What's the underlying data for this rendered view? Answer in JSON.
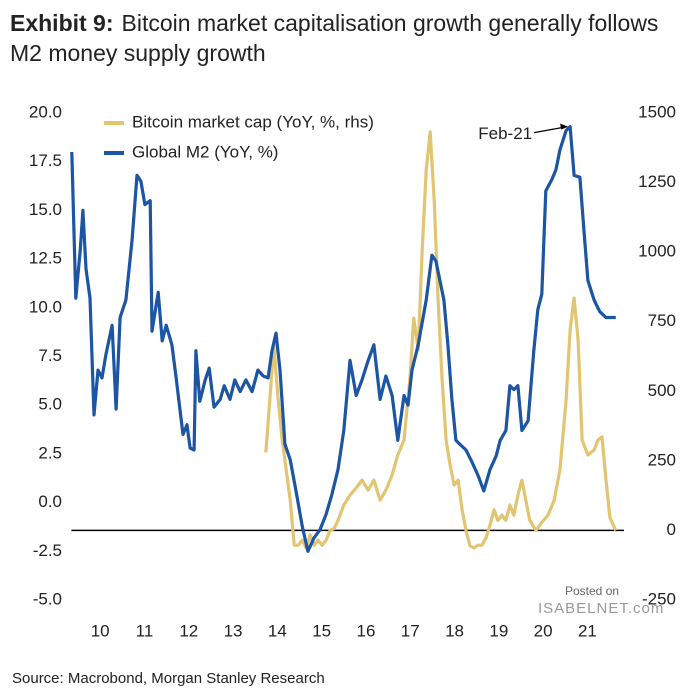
{
  "chart_data": {
    "type": "line",
    "exhibit": "Exhibit 9:",
    "title": "Bitcoin market capitalisation growth generally follows M2 money supply growth",
    "source": "Source: Macrobond, Morgan Stanley Research",
    "watermark": [
      "Posted on",
      "ISABELNET.com"
    ],
    "annotation": {
      "text": "Feb-21",
      "x": 2021.11,
      "y": 19.3
    },
    "legend": "upper left",
    "xlim": [
      2009.85,
      2022.15
    ],
    "xticks": [
      {
        "value": 2010.5,
        "label": "10"
      },
      {
        "value": 2011.5,
        "label": "11"
      },
      {
        "value": 2012.5,
        "label": "12"
      },
      {
        "value": 2013.5,
        "label": "13"
      },
      {
        "value": 2014.5,
        "label": "14"
      },
      {
        "value": 2015.5,
        "label": "15"
      },
      {
        "value": 2016.5,
        "label": "16"
      },
      {
        "value": 2017.5,
        "label": "17"
      },
      {
        "value": 2018.5,
        "label": "18"
      },
      {
        "value": 2019.5,
        "label": "19"
      },
      {
        "value": 2020.5,
        "label": "20"
      },
      {
        "value": 2021.5,
        "label": "21"
      }
    ],
    "ylim": [
      -5,
      20
    ],
    "yticks": [
      {
        "value": 20,
        "label": "20.0"
      },
      17.5,
      {
        "value": 15,
        "label": "15.0"
      },
      12.5,
      {
        "value": 10,
        "label": "10.0"
      },
      7.5,
      {
        "value": 5,
        "label": "5.0"
      },
      2.5,
      {
        "value": 0,
        "label": "0.0"
      },
      -2.5,
      {
        "value": -5,
        "label": "-5.0"
      }
    ],
    "y2lim": [
      -250,
      1500
    ],
    "y2ticks": [
      -250,
      0,
      250,
      500,
      750,
      1000,
      1250,
      1500
    ],
    "zero_line_y2": 0,
    "series": [
      {
        "name": "Bitcoin market cap (YoY, %, rhs)",
        "color": "#e2c572",
        "axis": "y2",
        "x": [
          2014.24,
          2014.33,
          2014.42,
          2014.52,
          2014.61,
          2014.7,
          2014.79,
          2014.88,
          2014.97,
          2015.06,
          2015.15,
          2015.24,
          2015.33,
          2015.42,
          2015.51,
          2015.6,
          2015.69,
          2015.78,
          2015.87,
          2016.0,
          2016.14,
          2016.28,
          2016.41,
          2016.55,
          2016.68,
          2016.82,
          2016.95,
          2017.09,
          2017.22,
          2017.36,
          2017.49,
          2017.58,
          2017.68,
          2017.77,
          2017.86,
          2017.95,
          2018.04,
          2018.13,
          2018.22,
          2018.31,
          2018.4,
          2018.49,
          2018.58,
          2018.67,
          2018.76,
          2018.85,
          2018.94,
          2019.03,
          2019.12,
          2019.21,
          2019.3,
          2019.39,
          2019.48,
          2019.57,
          2019.66,
          2019.75,
          2019.84,
          2019.93,
          2020.02,
          2020.11,
          2020.2,
          2020.34,
          2020.47,
          2020.61,
          2020.75,
          2020.88,
          2021.02,
          2021.11,
          2021.2,
          2021.29,
          2021.38,
          2021.51,
          2021.65,
          2021.74,
          2021.83,
          2021.92,
          2022.01,
          2022.14
        ],
        "values": [
          280,
          469,
          666,
          469,
          325,
          217,
          109,
          -53,
          -53,
          -35,
          -63,
          -16,
          -53,
          -35,
          -53,
          -35,
          0,
          7,
          36,
          91,
          127,
          152,
          181,
          145,
          181,
          109,
          145,
          199,
          271,
          325,
          541,
          763,
          648,
          1008,
          1295,
          1432,
          1187,
          828,
          541,
          325,
          235,
          163,
          181,
          74,
          0,
          -56,
          -63,
          -53,
          -53,
          -27,
          19,
          74,
          36,
          55,
          36,
          91,
          55,
          127,
          181,
          109,
          36,
          0,
          29,
          55,
          109,
          217,
          469,
          720,
          835,
          684,
          325,
          271,
          289,
          325,
          336,
          181,
          45,
          0
        ]
      },
      {
        "name": "Global M2 (YoY, %)",
        "color": "#1b55a3",
        "axis": "y",
        "x": [
          2009.86,
          2009.95,
          2010.05,
          2010.11,
          2010.18,
          2010.27,
          2010.36,
          2010.45,
          2010.54,
          2010.63,
          2010.77,
          2010.86,
          2010.95,
          2011.08,
          2011.22,
          2011.33,
          2011.42,
          2011.51,
          2011.63,
          2011.67,
          2011.81,
          2011.9,
          2011.99,
          2012.12,
          2012.21,
          2012.3,
          2012.37,
          2012.46,
          2012.53,
          2012.62,
          2012.66,
          2012.75,
          2012.87,
          2012.96,
          2013.07,
          2013.21,
          2013.3,
          2013.43,
          2013.54,
          2013.66,
          2013.79,
          2013.93,
          2014.06,
          2014.18,
          2014.29,
          2014.38,
          2014.47,
          2014.56,
          2014.67,
          2014.79,
          2014.92,
          2015.06,
          2015.19,
          2015.33,
          2015.46,
          2015.6,
          2015.73,
          2015.87,
          2016.0,
          2016.14,
          2016.28,
          2016.41,
          2016.55,
          2016.68,
          2016.82,
          2016.95,
          2017.09,
          2017.22,
          2017.36,
          2017.45,
          2017.54,
          2017.68,
          2017.86,
          2017.99,
          2018.08,
          2018.17,
          2018.26,
          2018.35,
          2018.44,
          2018.53,
          2018.62,
          2018.76,
          2018.89,
          2019.03,
          2019.16,
          2019.3,
          2019.44,
          2019.53,
          2019.66,
          2019.75,
          2019.84,
          2019.93,
          2020.02,
          2020.16,
          2020.29,
          2020.38,
          2020.47,
          2020.56,
          2020.7,
          2020.79,
          2020.88,
          2021.02,
          2021.11,
          2021.2,
          2021.33,
          2021.42,
          2021.51,
          2021.65,
          2021.78,
          2021.92,
          2022.14
        ],
        "values": [
          18.0,
          10.5,
          13.0,
          15.0,
          12.0,
          10.5,
          4.5,
          6.8,
          6.4,
          7.6,
          9.1,
          4.8,
          9.5,
          10.4,
          13.5,
          16.8,
          16.5,
          15.3,
          15.5,
          8.8,
          10.8,
          8.3,
          9.1,
          8.1,
          6.5,
          4.8,
          3.5,
          4.0,
          2.8,
          2.7,
          7.8,
          5.2,
          6.3,
          6.9,
          4.9,
          5.3,
          6.0,
          5.3,
          6.3,
          5.7,
          6.3,
          5.7,
          6.8,
          6.5,
          6.4,
          7.8,
          8.7,
          6.8,
          3.0,
          2.2,
          0.6,
          -1.2,
          -2.5,
          -1.8,
          -1.4,
          -0.6,
          0.4,
          1.7,
          3.7,
          7.3,
          5.5,
          6.3,
          7.3,
          8.1,
          5.3,
          6.5,
          5.5,
          3.2,
          5.5,
          5.0,
          6.8,
          8.1,
          10.4,
          12.7,
          12.4,
          11.4,
          10.4,
          8.1,
          5.3,
          3.2,
          3.0,
          2.7,
          2.1,
          1.4,
          0.6,
          1.7,
          2.4,
          3.2,
          3.7,
          6.0,
          5.8,
          6.0,
          3.7,
          4.2,
          7.8,
          9.9,
          10.7,
          16.0,
          16.6,
          17.1,
          18.1,
          19.1,
          19.3,
          16.8,
          16.7,
          14.0,
          11.4,
          10.4,
          9.8,
          9.5,
          9.5
        ]
      }
    ]
  }
}
